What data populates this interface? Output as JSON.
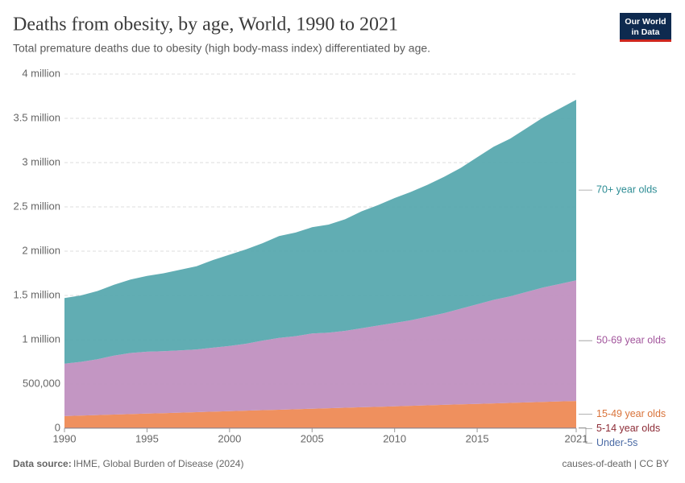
{
  "chart_data": {
    "type": "stacked-area",
    "title": "Deaths from obesity, by age, World, 1990 to 2021",
    "subtitle": "Total premature deaths due to obesity (high body-mass index) differentiated by age.",
    "source_label": "Data source:",
    "source": "IHME, Global Burden of Disease (2024)",
    "license": "causes-of-death | CC BY",
    "logo": [
      "Our World",
      "in Data"
    ],
    "x": [
      1990,
      1991,
      1992,
      1993,
      1994,
      1995,
      1996,
      1997,
      1998,
      1999,
      2000,
      2001,
      2002,
      2003,
      2004,
      2005,
      2006,
      2007,
      2008,
      2009,
      2010,
      2011,
      2012,
      2013,
      2014,
      2015,
      2016,
      2017,
      2018,
      2019,
      2020,
      2021
    ],
    "xlim": [
      1990,
      2021
    ],
    "xticks": [
      1990,
      1995,
      2000,
      2005,
      2010,
      2015,
      2021
    ],
    "ylim": [
      0,
      4000000
    ],
    "yticks": [
      0,
      {
        "value": 500000,
        "label": "500,000"
      },
      {
        "value": 1000000,
        "label": "1 million"
      },
      {
        "value": 1500000,
        "label": "1.5 million"
      },
      {
        "value": 2000000,
        "label": "2 million"
      },
      {
        "value": 2500000,
        "label": "2.5 million"
      },
      {
        "value": 3000000,
        "label": "3 million"
      },
      {
        "value": 3500000,
        "label": "3.5 million"
      },
      {
        "value": 4000000,
        "label": "4 million"
      }
    ],
    "grid": true,
    "series": [
      {
        "name": "Under-5s",
        "color": "#3f62a0",
        "label_color": "#4a6aa5",
        "values": [
          3000,
          3000,
          3000,
          3000,
          3000,
          3000,
          3000,
          3000,
          3000,
          3000,
          3000,
          3000,
          3000,
          3000,
          3000,
          3000,
          3000,
          3000,
          3000,
          3000,
          3000,
          3000,
          3000,
          3000,
          3000,
          3000,
          3000,
          3000,
          3000,
          3000,
          3000,
          3000
        ]
      },
      {
        "name": "5-14 year olds",
        "color": "#8c2b36",
        "label_color": "#8c2b36",
        "values": [
          5000,
          5000,
          5000,
          5000,
          5000,
          5000,
          5000,
          5000,
          5000,
          5000,
          5000,
          5000,
          5000,
          5000,
          5000,
          5000,
          5000,
          5000,
          5000,
          5000,
          5000,
          5000,
          5000,
          5000,
          5000,
          5000,
          5000,
          5000,
          5000,
          5000,
          5000,
          5000
        ]
      },
      {
        "name": "15-49 year olds",
        "color": "#ee8a55",
        "label_color": "#d9733a",
        "values": [
          130000,
          135500,
          141000,
          146500,
          152000,
          157500,
          163000,
          168500,
          174000,
          179500,
          185000,
          190500,
          196000,
          201500,
          207000,
          212500,
          218000,
          223500,
          229000,
          234500,
          240000,
          245500,
          251000,
          256500,
          262000,
          267500,
          273000,
          278500,
          284000,
          289500,
          295000,
          300500
        ]
      },
      {
        "name": "50-69 year olds",
        "color": "#c090c0",
        "label_color": "#a2559c",
        "values": [
          592000,
          606500,
          631000,
          665500,
          690000,
          699500,
          699000,
          703500,
          708000,
          722500,
          737000,
          756500,
          786000,
          810500,
          825000,
          849500,
          854000,
          868500,
          893000,
          917500,
          942000,
          966500,
          1001000,
          1035500,
          1080000,
          1124500,
          1169000,
          1203500,
          1248000,
          1292500,
          1327000,
          1361500
        ]
      },
      {
        "name": "70+ year olds",
        "color": "#58a9af",
        "label_color": "#2c8c94",
        "values": [
          740000,
          750000,
          770000,
          800000,
          830000,
          855000,
          880000,
          910000,
          940000,
          990000,
          1030000,
          1065000,
          1100000,
          1150000,
          1170000,
          1200000,
          1220000,
          1260000,
          1320000,
          1360000,
          1410000,
          1450000,
          1490000,
          1540000,
          1590000,
          1660000,
          1730000,
          1780000,
          1850000,
          1920000,
          1980000,
          2040000
        ]
      }
    ]
  }
}
